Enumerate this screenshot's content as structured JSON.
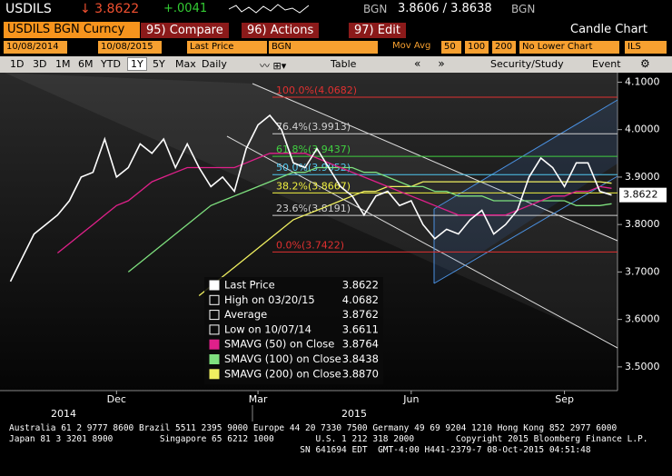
{
  "header": {
    "ticker": "USDILS",
    "last": "↓ 3.8622",
    "change": "+.0041",
    "source1": "BGN",
    "bid_ask": "3.8606 / 3.8638",
    "source2": "BGN",
    "security": "USDILS BGN Curncy",
    "compare": "95) Compare",
    "actions": "96) Actions",
    "edit": "97) Edit",
    "chart_kind": "Candle Chart",
    "start_date": "10/08/2014",
    "end_date": "10/08/2015",
    "field": "Last Price",
    "field_source": "BGN",
    "mov_avg": "Mov Avg",
    "ma1": "50",
    "ma2": "100",
    "ma3": "200",
    "lower_chart": "No Lower Chart",
    "currency": "ILS"
  },
  "toolbar": {
    "periods": [
      "1D",
      "3D",
      "1M",
      "6M",
      "YTD",
      "1Y",
      "5Y",
      "Max"
    ],
    "frequency": "Daily",
    "table": "Table",
    "study": "Security/Study",
    "event": "Event"
  },
  "chart_data": {
    "type": "line",
    "categories": [
      null,
      null,
      null,
      null,
      null,
      null,
      null,
      null,
      null,
      "Dec",
      null,
      null,
      null,
      null,
      null,
      null,
      null,
      null,
      null,
      null,
      null,
      "Mar",
      null,
      null,
      null,
      null,
      null,
      null,
      null,
      null,
      null,
      null,
      null,
      null,
      "Jun",
      null,
      null,
      null,
      null,
      null,
      null,
      null,
      null,
      null,
      null,
      null,
      null,
      "Sep",
      null,
      null,
      null,
      null
    ],
    "years": [
      "2014",
      "2015"
    ],
    "series": [
      {
        "name": "Last Price",
        "color": "#ffffff",
        "values": [
          3.68,
          3.73,
          3.78,
          3.8,
          3.82,
          3.85,
          3.9,
          3.91,
          3.98,
          3.9,
          3.92,
          3.97,
          3.95,
          3.98,
          3.92,
          3.97,
          3.92,
          3.88,
          3.9,
          3.87,
          3.96,
          4.01,
          4.03,
          4.0,
          3.93,
          3.92,
          3.96,
          3.92,
          3.88,
          3.86,
          3.82,
          3.86,
          3.87,
          3.84,
          3.85,
          3.8,
          3.77,
          3.79,
          3.78,
          3.81,
          3.83,
          3.78,
          3.8,
          3.83,
          3.9,
          3.94,
          3.92,
          3.88,
          3.93,
          3.93,
          3.87,
          3.8622
        ]
      },
      {
        "name": "SMAVG (50) on Close",
        "color": "#e0208a",
        "values": [
          null,
          null,
          null,
          null,
          3.74,
          3.76,
          3.78,
          3.8,
          3.82,
          3.84,
          3.85,
          3.87,
          3.89,
          3.9,
          3.91,
          3.92,
          3.92,
          3.92,
          3.92,
          3.92,
          3.93,
          3.94,
          3.95,
          3.95,
          3.95,
          3.95,
          3.94,
          3.93,
          3.92,
          3.91,
          3.9,
          3.89,
          3.88,
          3.87,
          3.86,
          3.85,
          3.84,
          3.83,
          3.82,
          3.82,
          3.82,
          3.82,
          3.82,
          3.83,
          3.84,
          3.85,
          3.86,
          3.86,
          3.87,
          3.87,
          3.88,
          3.8764
        ]
      },
      {
        "name": "SMAVG (100) on Close",
        "color": "#7ee07e",
        "values": [
          null,
          null,
          null,
          null,
          null,
          null,
          null,
          null,
          null,
          null,
          3.7,
          3.72,
          3.74,
          3.76,
          3.78,
          3.8,
          3.82,
          3.84,
          3.85,
          3.86,
          3.87,
          3.88,
          3.89,
          3.9,
          3.91,
          3.91,
          3.92,
          3.92,
          3.92,
          3.92,
          3.91,
          3.91,
          3.9,
          3.89,
          3.88,
          3.88,
          3.87,
          3.87,
          3.86,
          3.86,
          3.86,
          3.85,
          3.85,
          3.85,
          3.85,
          3.85,
          3.85,
          3.85,
          3.84,
          3.84,
          3.84,
          3.8438
        ]
      },
      {
        "name": "SMAVG (200) on Close",
        "color": "#f0f060",
        "values": [
          null,
          null,
          null,
          null,
          null,
          null,
          null,
          null,
          null,
          null,
          null,
          null,
          null,
          null,
          null,
          null,
          3.65,
          3.67,
          3.69,
          3.71,
          3.73,
          3.75,
          3.77,
          3.79,
          3.81,
          3.82,
          3.83,
          3.84,
          3.85,
          3.86,
          3.87,
          3.87,
          3.88,
          3.88,
          3.88,
          3.89,
          3.89,
          3.89,
          3.89,
          3.89,
          3.89,
          3.89,
          3.89,
          3.89,
          3.89,
          3.89,
          3.89,
          3.89,
          3.89,
          3.89,
          3.89,
          3.887
        ]
      }
    ],
    "ylim": [
      3.45,
      4.12
    ],
    "yticks": [
      {
        "value": 3.5,
        "label": "3.5000"
      },
      {
        "value": 3.6,
        "label": "3.6000"
      },
      {
        "value": 3.7,
        "label": "3.7000"
      },
      {
        "value": 3.8,
        "label": "3.8000"
      },
      {
        "value": 3.9,
        "label": "3.9000"
      },
      {
        "value": 4.0,
        "label": "4.0000"
      },
      {
        "value": 4.1,
        "label": "4.1000"
      }
    ],
    "fib_levels": [
      {
        "value": 4.0682,
        "label": "100.0%(4.0682)",
        "color": "#e03030"
      },
      {
        "value": 3.9913,
        "label": "76.4%(3.9913)",
        "color": "#cfcfcf"
      },
      {
        "value": 3.9437,
        "label": "61.8%(3.9437)",
        "color": "#40d040"
      },
      {
        "value": 3.9052,
        "label": "50.0%(3.9052)",
        "color": "#50c8f0"
      },
      {
        "value": 3.8667,
        "label": "38.2%(3.8667)",
        "color": "#f0f040"
      },
      {
        "value": 3.8191,
        "label": "23.6%(3.8191)",
        "color": "#cfcfcf"
      },
      {
        "value": 3.7422,
        "label": "0.0%(3.7422)",
        "color": "#e03030"
      }
    ],
    "legend": [
      {
        "label": "Last Price",
        "value": "3.8622",
        "color": "#ffffff"
      },
      {
        "label": "High on 03/20/15",
        "value": "4.0682",
        "color": "#ffffff"
      },
      {
        "label": "Average",
        "value": "3.8762",
        "color": "#ffffff"
      },
      {
        "label": "Low on 10/07/14",
        "value": "3.6611",
        "color": "#ffffff"
      },
      {
        "label": "SMAVG (50) on Close",
        "value": "3.8764",
        "color": "#e0208a"
      },
      {
        "label": "SMAVG (100) on Close",
        "value": "3.8438",
        "color": "#7ee07e"
      },
      {
        "label": "SMAVG (200) on Close",
        "value": "3.8870",
        "color": "#f0f060"
      }
    ]
  },
  "footer": [
    "Australia 61 2 9777 8600 Brazil 5511 2395 9000 Europe 44 20 7330 7500 Germany 49 69 9204 1210 Hong Kong 852 2977 6000",
    "Japan 81 3 3201 8900         Singapore 65 6212 1000        U.S. 1 212 318 2000        Copyright 2015 Bloomberg Finance L.P.",
    "                                                        SN 641694 EDT  GMT-4:00 H441-2379-7 08-Oct-2015 04:51:48"
  ]
}
